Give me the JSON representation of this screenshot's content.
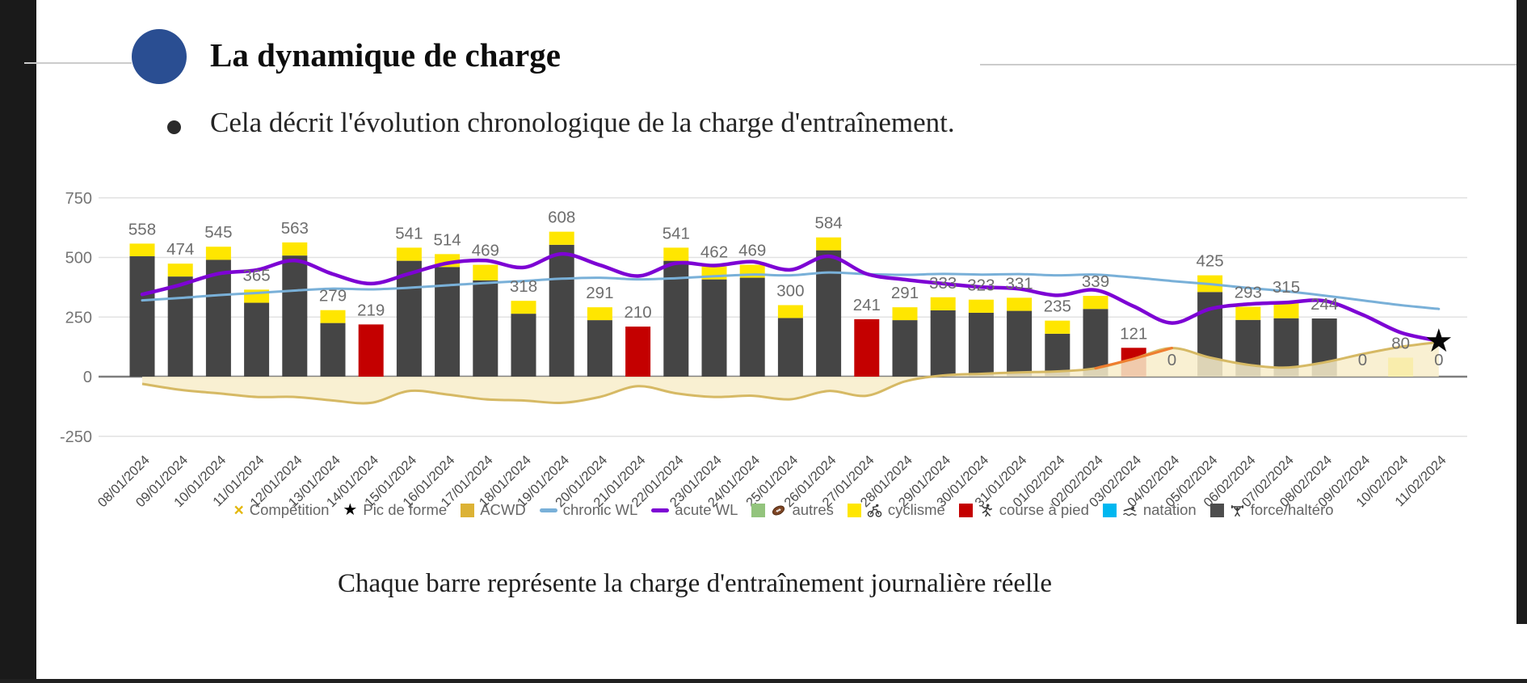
{
  "page": {
    "title": "La dynamique de charge",
    "bullet_text": "Cela décrit l'évolution chronologique de la charge d'entraînement.",
    "caption": "Chaque barre représente la charge d'entraînement journalière réelle",
    "accent_color": "#2a4e92"
  },
  "chart_data": {
    "type": "bar",
    "subtype": "stacked-bar-with-lines-and-area",
    "categories": [
      "08/01/2024",
      "09/01/2024",
      "10/01/2024",
      "11/01/2024",
      "12/01/2024",
      "13/01/2024",
      "14/01/2024",
      "15/01/2024",
      "16/01/2024",
      "17/01/2024",
      "18/01/2024",
      "19/01/2024",
      "20/01/2024",
      "21/01/2024",
      "22/01/2024",
      "23/01/2024",
      "24/01/2024",
      "25/01/2024",
      "26/01/2024",
      "27/01/2024",
      "28/01/2024",
      "29/01/2024",
      "30/01/2024",
      "31/01/2024",
      "01/02/2024",
      "02/02/2024",
      "03/02/2024",
      "04/02/2024",
      "05/02/2024",
      "06/02/2024",
      "07/02/2024",
      "08/02/2024",
      "09/02/2024",
      "10/02/2024",
      "11/02/2024"
    ],
    "bar_total_labels": [
      558,
      474,
      545,
      365,
      563,
      279,
      219,
      541,
      514,
      469,
      318,
      608,
      291,
      210,
      541,
      462,
      469,
      300,
      584,
      241,
      291,
      333,
      323,
      331,
      235,
      339,
      121,
      0,
      425,
      293,
      315,
      244,
      0,
      80,
      0
    ],
    "series": [
      {
        "name": "force/haltéro",
        "type": "bar",
        "color": "#454545",
        "values": [
          505,
          420,
          490,
          310,
          508,
          225,
          0,
          486,
          460,
          404,
          264,
          553,
          237,
          0,
          486,
          408,
          415,
          246,
          530,
          0,
          237,
          278,
          268,
          276,
          180,
          284,
          0,
          0,
          355,
          238,
          245,
          244,
          0,
          0,
          0
        ]
      },
      {
        "name": "cyclisme",
        "type": "bar",
        "color": "#ffe600",
        "values": [
          53,
          54,
          55,
          55,
          55,
          54,
          0,
          55,
          54,
          65,
          54,
          55,
          54,
          0,
          55,
          54,
          54,
          54,
          54,
          0,
          54,
          55,
          55,
          55,
          55,
          55,
          0,
          0,
          70,
          55,
          70,
          0,
          0,
          80,
          0
        ]
      },
      {
        "name": "course à pied",
        "type": "bar",
        "color": "#c40000",
        "values": [
          0,
          0,
          0,
          0,
          0,
          0,
          219,
          0,
          0,
          0,
          0,
          0,
          0,
          210,
          0,
          0,
          0,
          0,
          0,
          241,
          0,
          0,
          0,
          0,
          0,
          0,
          121,
          0,
          0,
          0,
          0,
          0,
          0,
          0,
          0
        ]
      },
      {
        "name": "chronic WL",
        "type": "line",
        "color": "#79b0d8",
        "values": [
          320,
          330,
          342,
          351,
          361,
          369,
          366,
          373,
          383,
          393,
          401,
          411,
          415,
          408,
          413,
          421,
          428,
          425,
          437,
          430,
          427,
          431,
          428,
          430,
          425,
          428,
          416,
          401,
          388,
          372,
          358,
          340,
          320,
          300,
          284
        ]
      },
      {
        "name": "acute WL",
        "type": "line",
        "color": "#7d03d4",
        "values": [
          345,
          385,
          432,
          447,
          487,
          430,
          390,
          432,
          476,
          487,
          458,
          515,
          468,
          422,
          476,
          466,
          482,
          448,
          505,
          431,
          407,
          390,
          376,
          368,
          341,
          363,
          295,
          225,
          284,
          304,
          311,
          318,
          260,
          185,
          150
        ]
      },
      {
        "name": "ACWD",
        "type": "area",
        "color": "#d6b964",
        "fill": "#f8edca",
        "values": [
          -30,
          -55,
          -70,
          -85,
          -85,
          -100,
          -110,
          -60,
          -75,
          -95,
          -100,
          -110,
          -85,
          -40,
          -70,
          -85,
          -80,
          -95,
          -60,
          -80,
          -20,
          5,
          12,
          18,
          22,
          35,
          75,
          120,
          80,
          50,
          38,
          60,
          95,
          125,
          145
        ]
      }
    ],
    "acwd_warning_segment": {
      "from_index": 25,
      "to_index": 27,
      "color": "#ef7e30"
    },
    "peak_marker": {
      "name": "Pic de forme",
      "symbol": "★",
      "category": "11/02/2024",
      "value": 150
    },
    "ylim": [
      -250,
      750
    ],
    "yticks": [
      750,
      500,
      250,
      0,
      -250
    ],
    "grid": true,
    "legend_position": "bottom"
  },
  "legend": {
    "items": [
      {
        "label": "Compétition",
        "icon": "x-mark",
        "color": "#e3b70a"
      },
      {
        "label": "Pic de forme",
        "icon": "star",
        "color": "#000000"
      },
      {
        "label": "ACWD",
        "icon": "square",
        "color": "#dcb235"
      },
      {
        "label": "chronic WL",
        "icon": "line",
        "color": "#79b0d8"
      },
      {
        "label": "acute WL",
        "icon": "line",
        "color": "#7d03d4"
      },
      {
        "label": "autres",
        "icon": "square",
        "color": "#93c47d",
        "sport": "football"
      },
      {
        "label": "cyclisme",
        "icon": "square",
        "color": "#ffe600",
        "sport": "cyclist"
      },
      {
        "label": "course à pied",
        "icon": "square",
        "color": "#c40000",
        "sport": "runner"
      },
      {
        "label": "natation",
        "icon": "square",
        "color": "#00b7f0",
        "sport": "swimmer"
      },
      {
        "label": "force/haltéro",
        "icon": "square",
        "color": "#4d4d4d",
        "sport": "lifter"
      }
    ]
  }
}
